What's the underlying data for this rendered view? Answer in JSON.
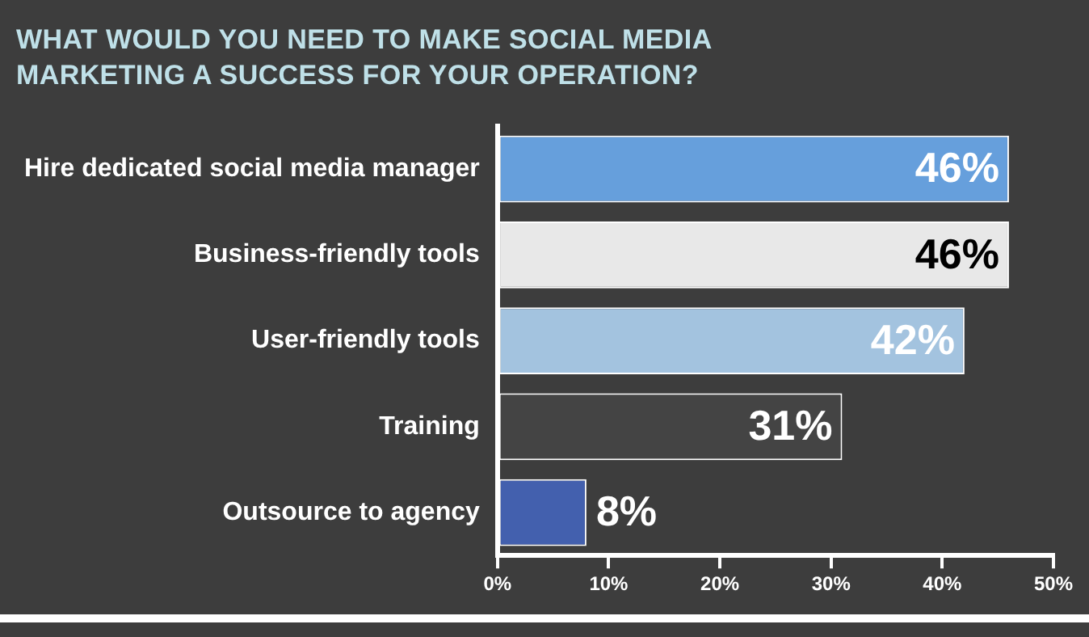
{
  "chart_data": {
    "type": "bar",
    "orientation": "horizontal",
    "title": "WHAT WOULD YOU NEED TO MAKE SOCIAL MEDIA MARKETING A SUCCESS FOR YOUR OPERATION?",
    "categories": [
      "Hire dedicated social media manager",
      "Business-friendly tools",
      "User-friendly tools",
      "Training",
      "Outsource to agency"
    ],
    "values": [
      46,
      46,
      42,
      31,
      8
    ],
    "colors": [
      "#669fdc",
      "#e8e8e8",
      "#a3c3df",
      "#444444",
      "#4360ae"
    ],
    "value_labels": [
      "46%",
      "46%",
      "42%",
      "31%",
      "8%"
    ],
    "xlim": [
      0,
      50
    ],
    "xticks": [
      {
        "value": 0,
        "label": "0%"
      },
      {
        "value": 10,
        "label": "10%"
      },
      {
        "value": 20,
        "label": "20%"
      },
      {
        "value": 30,
        "label": "30%"
      },
      {
        "value": 40,
        "label": "40%"
      },
      {
        "value": 50,
        "label": "50%"
      }
    ],
    "grid": false,
    "legend": false
  }
}
